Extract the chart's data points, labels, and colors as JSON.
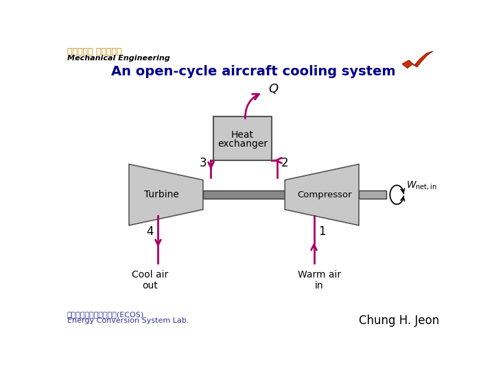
{
  "title": "An open-cycle aircraft cooling system",
  "title_color": "#00008B",
  "title_fontsize": 14,
  "bg_color": "#FFFFFF",
  "arrow_color": "#AA0066",
  "component_fill": "#C8C8C8",
  "component_edge": "#555555",
  "shaft_fill": "#888888",
  "shaft_edge": "#333333",
  "text_color": "#000000",
  "header_text1": "부산대학교 기계공학부",
  "header_text2": "Mechanical Engineering",
  "footer_text1": "에너지변환시스템연구실(ECOS)",
  "footer_text2": "Energy Conversion System Lab.",
  "footer_right": "Chung H. Jeon"
}
